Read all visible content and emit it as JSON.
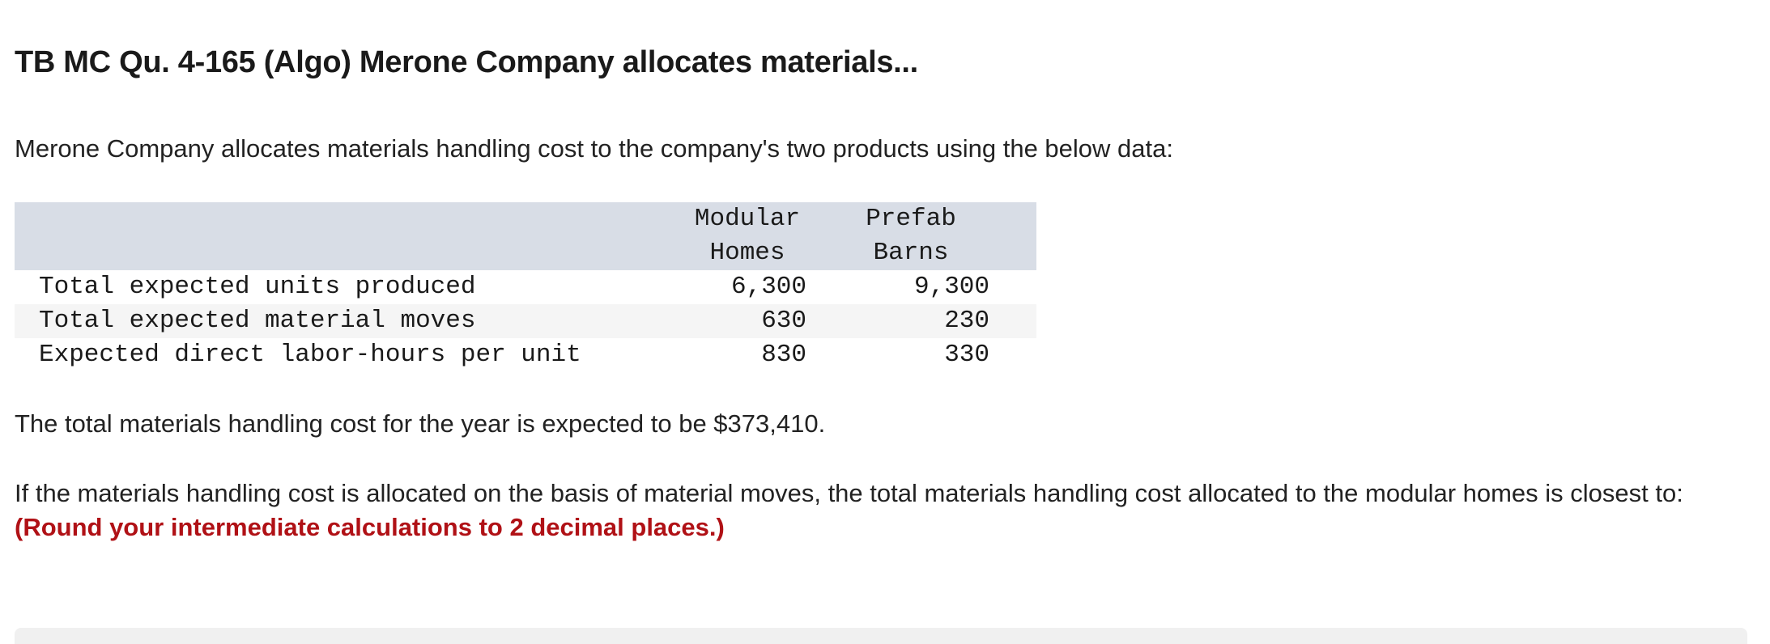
{
  "question": {
    "title": "TB MC Qu. 4-165 (Algo) Merone Company allocates materials...",
    "intro": "Merone Company allocates materials handling cost to the company's two products using the below data:"
  },
  "table": {
    "headers": {
      "col_a_line1": "Modular",
      "col_a_line2": "Homes",
      "col_b_line1": "Prefab",
      "col_b_line2": "Barns"
    },
    "rows": [
      {
        "label": "Total expected units produced",
        "a": "6,300",
        "b": "9,300"
      },
      {
        "label": "Total expected material moves",
        "a": "630",
        "b": "230"
      },
      {
        "label": "Expected direct labor-hours per unit",
        "a": "830",
        "b": "330"
      }
    ]
  },
  "paragraphs": {
    "total_cost": "The total materials handling cost for the year is expected to be $373,410.",
    "prompt": "If the materials handling cost is allocated on the basis of material moves, the total materials handling cost allocated to the modular homes is closest to:",
    "instruction": "(Round your intermediate calculations to 2 decimal places.)"
  },
  "colors": {
    "header_bg": "#d8dde6",
    "alt_row_bg": "#f5f5f5",
    "instruction_red": "#b01116"
  }
}
